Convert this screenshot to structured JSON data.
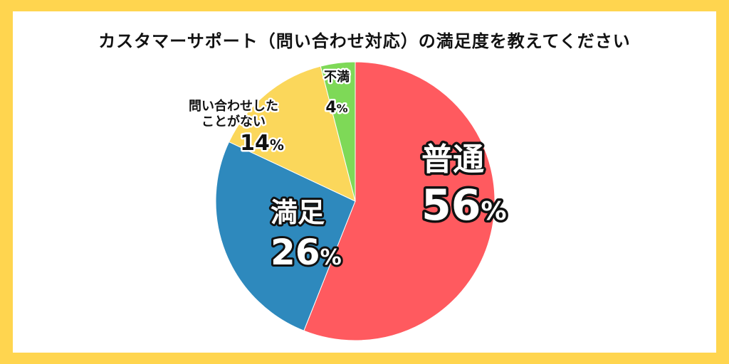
{
  "title": "カスタマーサポート（問い合わせ対応）の満足度を教えてください",
  "chart_data": {
    "type": "pie",
    "title": "カスタマーサポート（問い合わせ対応）の満足度を教えてください",
    "start_angle": "12 o'clock",
    "direction": "clockwise",
    "slices": [
      {
        "name": "普通",
        "label_lines": [
          "普通"
        ],
        "value": 56,
        "value_label": "56%",
        "color": "#FF5A5F"
      },
      {
        "name": "満足",
        "label_lines": [
          "満足"
        ],
        "value": 26,
        "value_label": "26%",
        "color": "#2E89BD"
      },
      {
        "name": "問い合わせしたことがない",
        "label_lines": [
          "問い合わせした",
          "ことがない"
        ],
        "value": 14,
        "value_label": "14%",
        "color": "#FBD75B"
      },
      {
        "name": "不満",
        "label_lines": [
          "不満"
        ],
        "value": 4,
        "value_label": "4%",
        "color": "#7ED957"
      }
    ]
  }
}
